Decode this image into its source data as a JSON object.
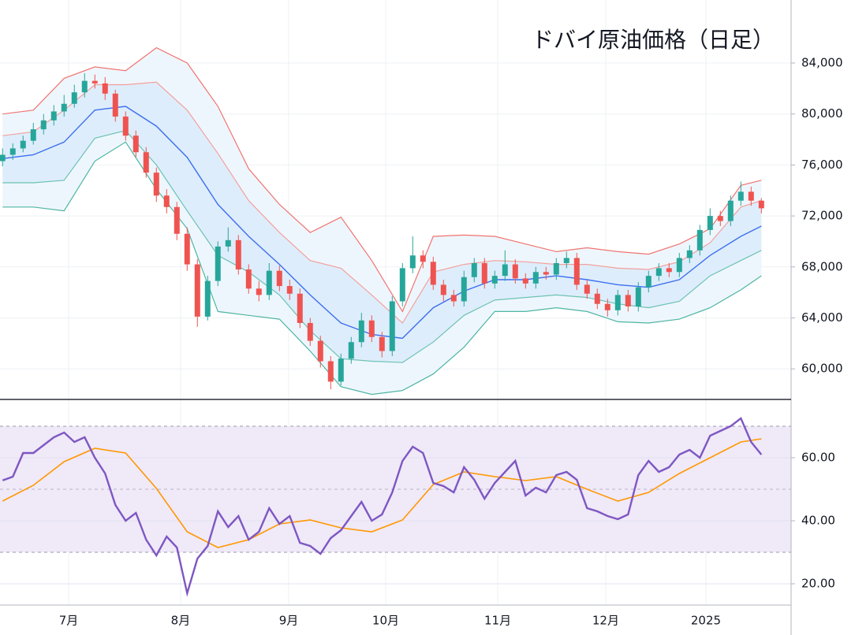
{
  "chart_data": {
    "type": "candlestick",
    "title": "ドバイ原油価格（日足）",
    "x": [
      0,
      1,
      2,
      3,
      4,
      5,
      6,
      7,
      8,
      9,
      10,
      11,
      12,
      13,
      14,
      15,
      16,
      17,
      18,
      19,
      20,
      21,
      22,
      23,
      24,
      25,
      26,
      27,
      28,
      29,
      30,
      31,
      32,
      33,
      34,
      35,
      36,
      37,
      38,
      39,
      40,
      41,
      42,
      43,
      44,
      45,
      46,
      47,
      48,
      49,
      50,
      51,
      52,
      53,
      54,
      55,
      56,
      57,
      58,
      59,
      60,
      61,
      62,
      63,
      64,
      65,
      66,
      67,
      68,
      69,
      70,
      71,
      72,
      73,
      74
    ],
    "open": [
      76300,
      76800,
      77300,
      77900,
      78800,
      79500,
      80200,
      80800,
      81700,
      82600,
      82400,
      81600,
      79800,
      78300,
      77000,
      75400,
      73600,
      72700,
      70600,
      68200,
      64100,
      66900,
      69600,
      70100,
      67800,
      66300,
      65800,
      67700,
      66500,
      65900,
      63600,
      62200,
      60600,
      59000,
      60800,
      62100,
      63800,
      62500,
      61400,
      65300,
      67900,
      68900,
      68400,
      66600,
      65800,
      65300,
      67200,
      68300,
      66700,
      67300,
      68200,
      67100,
      66700,
      67600,
      67400,
      68300,
      68700,
      66600,
      65900,
      65100,
      64600,
      65800,
      64900,
      66400,
      67300,
      67900,
      67600,
      68700,
      69300,
      70900,
      72000,
      71600,
      73200,
      73900,
      73200
    ],
    "high": [
      77300,
      77700,
      78300,
      79300,
      80000,
      80700,
      81500,
      82300,
      83200,
      83100,
      82900,
      81900,
      80200,
      78700,
      77400,
      75800,
      74100,
      73100,
      71100,
      68600,
      67300,
      70000,
      71100,
      70500,
      68200,
      66900,
      68300,
      68100,
      67000,
      66300,
      64000,
      62600,
      61000,
      61200,
      62500,
      64400,
      64200,
      62900,
      65700,
      68300,
      70400,
      69300,
      68800,
      67000,
      66200,
      67700,
      68700,
      68700,
      67700,
      69300,
      68600,
      67500,
      68000,
      68000,
      68700,
      69200,
      69100,
      67000,
      66300,
      65500,
      66200,
      66200,
      66800,
      67700,
      68300,
      68300,
      69100,
      69700,
      71300,
      72600,
      72400,
      73600,
      74700,
      74300,
      73400
    ],
    "low": [
      75900,
      76400,
      77000,
      77600,
      78400,
      79100,
      79800,
      80500,
      81300,
      82000,
      81100,
      79400,
      77900,
      76600,
      75000,
      73100,
      72200,
      70100,
      67700,
      63300,
      63800,
      66500,
      69200,
      67400,
      65900,
      65300,
      65400,
      66100,
      65400,
      63200,
      61800,
      60100,
      58400,
      58700,
      60400,
      61700,
      62100,
      60900,
      61000,
      64900,
      67500,
      67900,
      66200,
      65300,
      64900,
      64900,
      66800,
      66300,
      66300,
      66900,
      66700,
      66300,
      66300,
      67000,
      67000,
      67900,
      66200,
      65500,
      64700,
      64100,
      64200,
      64500,
      64500,
      66000,
      66900,
      67200,
      67200,
      68300,
      68900,
      70500,
      71200,
      71200,
      72800,
      72800,
      72200
    ],
    "close": [
      76800,
      77300,
      77900,
      78800,
      79500,
      80200,
      80800,
      81700,
      82600,
      82400,
      81600,
      79800,
      78300,
      77000,
      75400,
      73600,
      72700,
      70600,
      68200,
      64100,
      66900,
      69600,
      70100,
      67800,
      66300,
      65800,
      67700,
      66500,
      65900,
      63600,
      62200,
      60600,
      59000,
      60800,
      62100,
      63800,
      62500,
      61400,
      65300,
      67900,
      68900,
      68400,
      66600,
      65800,
      65300,
      67200,
      68300,
      66700,
      67300,
      68200,
      67100,
      66700,
      67600,
      67400,
      68300,
      68700,
      66600,
      65900,
      65100,
      64600,
      65800,
      64900,
      66400,
      67300,
      67900,
      67600,
      68700,
      69300,
      70900,
      72000,
      71600,
      73200,
      73900,
      73200,
      72600
    ],
    "up_color": "#26a69a",
    "down_color": "#ef5350",
    "xlim": [
      -0.25,
      76.9
    ],
    "xticks": [
      {
        "value": 6.44,
        "label": "7月"
      },
      {
        "value": 17.36,
        "label": "8月"
      },
      {
        "value": 27.9,
        "label": "9月"
      },
      {
        "value": 37.36,
        "label": "10月"
      },
      {
        "value": 48.29,
        "label": "11月"
      },
      {
        "value": 58.82,
        "label": "12月"
      },
      {
        "value": 68.59,
        "label": "2025"
      }
    ],
    "ylim": [
      57725,
      88946
    ],
    "yticks": [
      {
        "value": 60000,
        "label": "60,000"
      },
      {
        "value": 64000,
        "label": "64,000"
      },
      {
        "value": 68000,
        "label": "68,000"
      },
      {
        "value": 72000,
        "label": "72,000"
      },
      {
        "value": 76000,
        "label": "76,000"
      },
      {
        "value": 80000,
        "label": "80,000"
      },
      {
        "value": 84000,
        "label": "84,000"
      }
    ],
    "grid": true,
    "overlay_x": [
      0,
      3,
      6,
      9,
      12,
      15,
      18,
      21,
      24,
      27,
      30,
      33,
      36,
      39,
      42,
      45,
      48,
      51,
      54,
      57,
      60,
      63,
      66,
      69,
      72,
      74
    ],
    "bands": [
      {
        "upper": [
          80000,
          80300,
          82800,
          83700,
          83400,
          85200,
          84000,
          80600,
          75700,
          72900,
          70700,
          71900,
          68500,
          64500,
          70400,
          70500,
          70400,
          69800,
          69200,
          69500,
          69200,
          69000,
          69800,
          71000,
          74400,
          74800
        ],
        "lower": [
          72700,
          72700,
          72400,
          76300,
          77800,
          74100,
          71000,
          64500,
          64200,
          63900,
          61400,
          58600,
          58000,
          58300,
          59600,
          61700,
          64500,
          64500,
          64800,
          64500,
          63700,
          63600,
          63900,
          64800,
          66200,
          67300
        ],
        "upper_color": "#f07470",
        "lower_color": "#4db6a2",
        "fill": "#eef6fd"
      },
      {
        "upper": [
          78300,
          78600,
          80300,
          82300,
          82300,
          82500,
          80300,
          76900,
          73200,
          70700,
          68500,
          67900,
          65800,
          63600,
          67600,
          68200,
          68500,
          68400,
          68200,
          68200,
          67900,
          67800,
          68400,
          69900,
          72700,
          73200
        ],
        "lower": [
          74600,
          74600,
          74800,
          78100,
          78700,
          76000,
          72400,
          68900,
          67600,
          65800,
          63000,
          60800,
          60600,
          60500,
          62100,
          64200,
          65400,
          65600,
          65800,
          65600,
          65100,
          64800,
          65300,
          67300,
          68500,
          69300
        ],
        "upper_color": "#f4a09c",
        "lower_color": "#6cc3b3",
        "fill": "#deedfb"
      }
    ],
    "ma": {
      "color": "#3d6ff0",
      "values": [
        76500,
        76800,
        77800,
        80300,
        80600,
        79050,
        76600,
        72900,
        70400,
        68200,
        65800,
        63600,
        62700,
        62400,
        64800,
        66100,
        67000,
        67000,
        67300,
        67000,
        66600,
        66400,
        67000,
        68900,
        70400,
        71200
      ]
    },
    "rsi": {
      "values": [
        52.8,
        54,
        61.5,
        61.5,
        64,
        66.5,
        68,
        65,
        66.5,
        60,
        55,
        45,
        40,
        42.5,
        34,
        29,
        35,
        31.5,
        17,
        28,
        32,
        43,
        38,
        41.5,
        34,
        36.5,
        44,
        39,
        41.5,
        33,
        32,
        29.5,
        34.5,
        37,
        41.5,
        46,
        40,
        42,
        49,
        59,
        63.5,
        61.5,
        52,
        51,
        49,
        57,
        53,
        47,
        52,
        55.5,
        59,
        48,
        50.5,
        49,
        54.5,
        55.5,
        53,
        44,
        43,
        41.5,
        40.5,
        42,
        54.5,
        59,
        55.5,
        57,
        61,
        62.5,
        60,
        67,
        68.5,
        70,
        72.5,
        65,
        61
      ],
      "color": "#7e57c2",
      "ma_values": [
        46.25,
        51.25,
        58.75,
        63,
        61.5,
        50.25,
        36.5,
        31.5,
        34,
        39,
        40.25,
        37.75,
        36.5,
        40.25,
        51.5,
        55.5,
        54,
        52.75,
        54,
        50,
        46.25,
        49,
        55,
        60,
        65,
        66
      ],
      "ma_color": "#ff9800",
      "ylim": [
        13.25,
        78.25
      ],
      "yticks": [
        {
          "value": 20,
          "label": "20.00"
        },
        {
          "value": 40,
          "label": "40.00"
        },
        {
          "value": 60,
          "label": "60.00"
        }
      ],
      "band": [
        30,
        70
      ],
      "band_fill": "#efe9f8",
      "midline": 50
    }
  }
}
